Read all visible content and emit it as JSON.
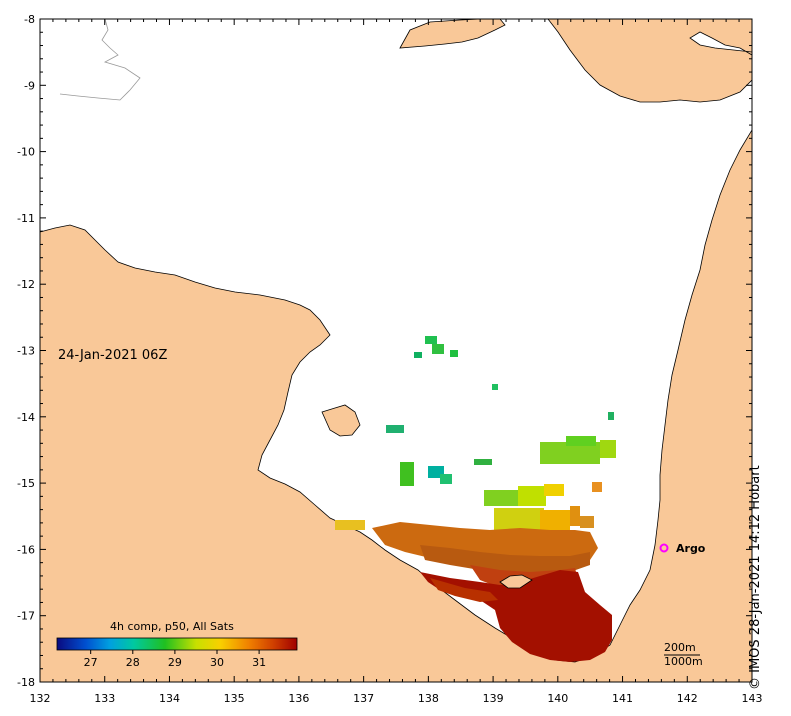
{
  "map": {
    "date": "24-Jan-2021 06Z",
    "credit": "© IMOS 28-Jan-2021 14:12 Hobart",
    "colorbar_title": "4h comp, p50, All Sats",
    "colorbar_ticks": [
      "27",
      "28",
      "29",
      "30",
      "31"
    ],
    "scale_top": "200m",
    "scale_bottom": "1000m",
    "argo_label": "Argo",
    "x_ticks": [
      "132",
      "133",
      "134",
      "135",
      "136",
      "137",
      "138",
      "139",
      "140",
      "141",
      "142",
      "143"
    ],
    "y_ticks": [
      "-8",
      "-9",
      "-10",
      "-11",
      "-12",
      "-13",
      "-14",
      "-15",
      "-16",
      "-17",
      "-18"
    ],
    "colors": {
      "land": "#f9c898",
      "ocean": "#ffffff",
      "argo": "#ff00ff",
      "sst_cold": "#00008b",
      "sst_warm": "#a00000"
    }
  }
}
